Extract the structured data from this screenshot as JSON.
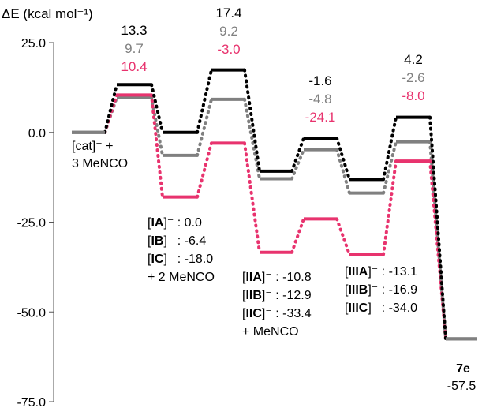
{
  "chart_data": {
    "type": "line",
    "ylabel": "ΔE (kcal mol⁻¹)",
    "ylim": [
      -75,
      25
    ],
    "yticks": [
      "25.0",
      "0.0",
      "-25.0",
      "-50.0",
      "-75.0"
    ],
    "colors": {
      "A": "#000000",
      "B": "#808080",
      "C": "#e8336e"
    },
    "start": {
      "value": 0.0,
      "label": "[cat]⁻ +",
      "label2": "3 MeNCO"
    },
    "end": {
      "value": -57.5,
      "name": "7e",
      "value_label": "-57.5"
    },
    "series": [
      {
        "key": "A",
        "values": [
          0.0,
          13.3,
          0.0,
          17.4,
          -10.8,
          -1.6,
          -13.1,
          4.2,
          -57.5
        ],
        "ts_labels": [
          "13.3",
          "17.4",
          "-1.6",
          "4.2"
        ]
      },
      {
        "key": "B",
        "values": [
          0.0,
          9.7,
          -6.4,
          9.2,
          -12.9,
          -4.8,
          -16.9,
          -2.6,
          -57.5
        ],
        "ts_labels": [
          "9.7",
          "9.2",
          "-4.8",
          "-2.6"
        ]
      },
      {
        "key": "C",
        "values": [
          0.0,
          10.4,
          -18.0,
          -3.0,
          -33.4,
          -24.1,
          -34.0,
          -8.0,
          -57.5
        ],
        "ts_labels": [
          "10.4",
          "-3.0",
          "-24.1",
          "-8.0"
        ]
      }
    ],
    "intermediate_groups": [
      {
        "lines": [
          {
            "key": "A",
            "name": "IA",
            "value": " : 0.0"
          },
          {
            "key": "B",
            "name": "IB",
            "value": " : -6.4"
          },
          {
            "key": "C",
            "name": "IC",
            "value": " : -18.0"
          }
        ],
        "note": "+ 2 MeNCO"
      },
      {
        "lines": [
          {
            "key": "A",
            "name": "IIA",
            "value": " : -10.8"
          },
          {
            "key": "B",
            "name": "IIB",
            "value": " : -12.9"
          },
          {
            "key": "C",
            "name": "IIC",
            "value": " : -33.4"
          }
        ],
        "note": "+ MeNCO"
      },
      {
        "lines": [
          {
            "key": "A",
            "name": "IIIA",
            "value": " : -13.1"
          },
          {
            "key": "B",
            "name": "IIIB",
            "value": " : -16.9"
          },
          {
            "key": "C",
            "name": "IIIC",
            "value": " : -34.0"
          }
        ],
        "note": ""
      }
    ]
  }
}
